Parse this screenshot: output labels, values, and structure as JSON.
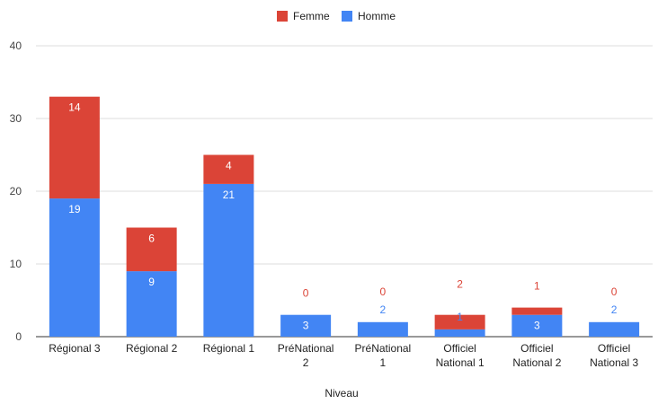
{
  "chart_data": {
    "type": "bar",
    "stacked": true,
    "categories": [
      [
        "Régional 3"
      ],
      [
        "Régional 2"
      ],
      [
        "Régional 1"
      ],
      [
        "PréNational",
        "2"
      ],
      [
        "PréNational",
        "1"
      ],
      [
        "Officiel",
        "National 1"
      ],
      [
        "Officiel",
        "National 2"
      ],
      [
        "Officiel",
        "National 3"
      ]
    ],
    "series": [
      {
        "name": "Homme",
        "color": "#4285f4",
        "values": [
          19,
          9,
          21,
          3,
          2,
          1,
          3,
          2
        ]
      },
      {
        "name": "Femme",
        "color": "#db4437",
        "values": [
          14,
          6,
          4,
          0,
          0,
          2,
          1,
          0
        ]
      }
    ],
    "legend_order": [
      "Femme",
      "Homme"
    ],
    "legend_position": "top",
    "xlabel": "Niveau",
    "ylabel": "",
    "ylim": [
      0,
      40
    ],
    "yticks": [
      0,
      10,
      20,
      30,
      40
    ],
    "grid": true
  }
}
